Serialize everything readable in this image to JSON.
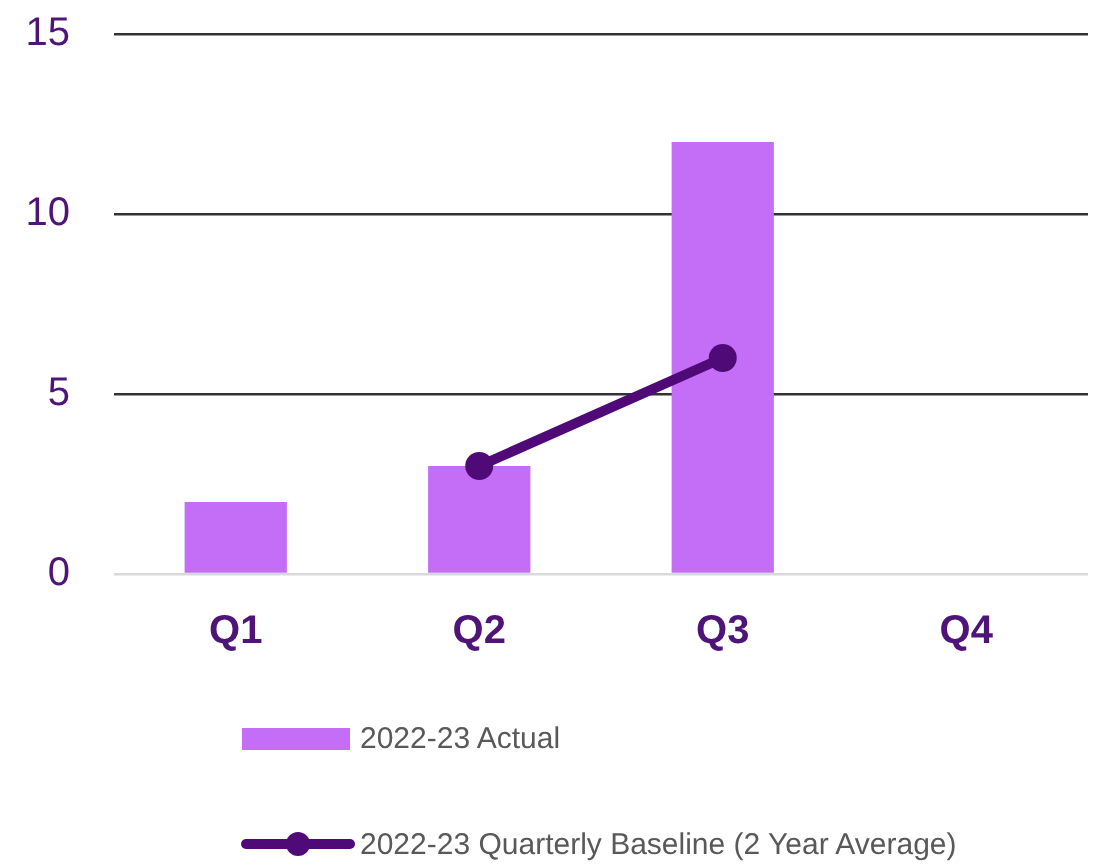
{
  "chart_data": {
    "type": "bar",
    "categories": [
      "Q1",
      "Q2",
      "Q3",
      "Q4"
    ],
    "series": [
      {
        "name": "2022-23 Actual",
        "color": "#c46ef7",
        "values": [
          2,
          3,
          12,
          null
        ]
      },
      {
        "name": "2022-23 Quarterly Baseline (2 Year Average)",
        "type": "line",
        "color": "#500a78",
        "values": [
          null,
          3,
          6,
          null
        ]
      }
    ],
    "ylim": [
      0,
      15
    ],
    "yticks": [
      0,
      5,
      10,
      15
    ],
    "grid": "y",
    "legend": "bottom",
    "marker": "circle"
  }
}
